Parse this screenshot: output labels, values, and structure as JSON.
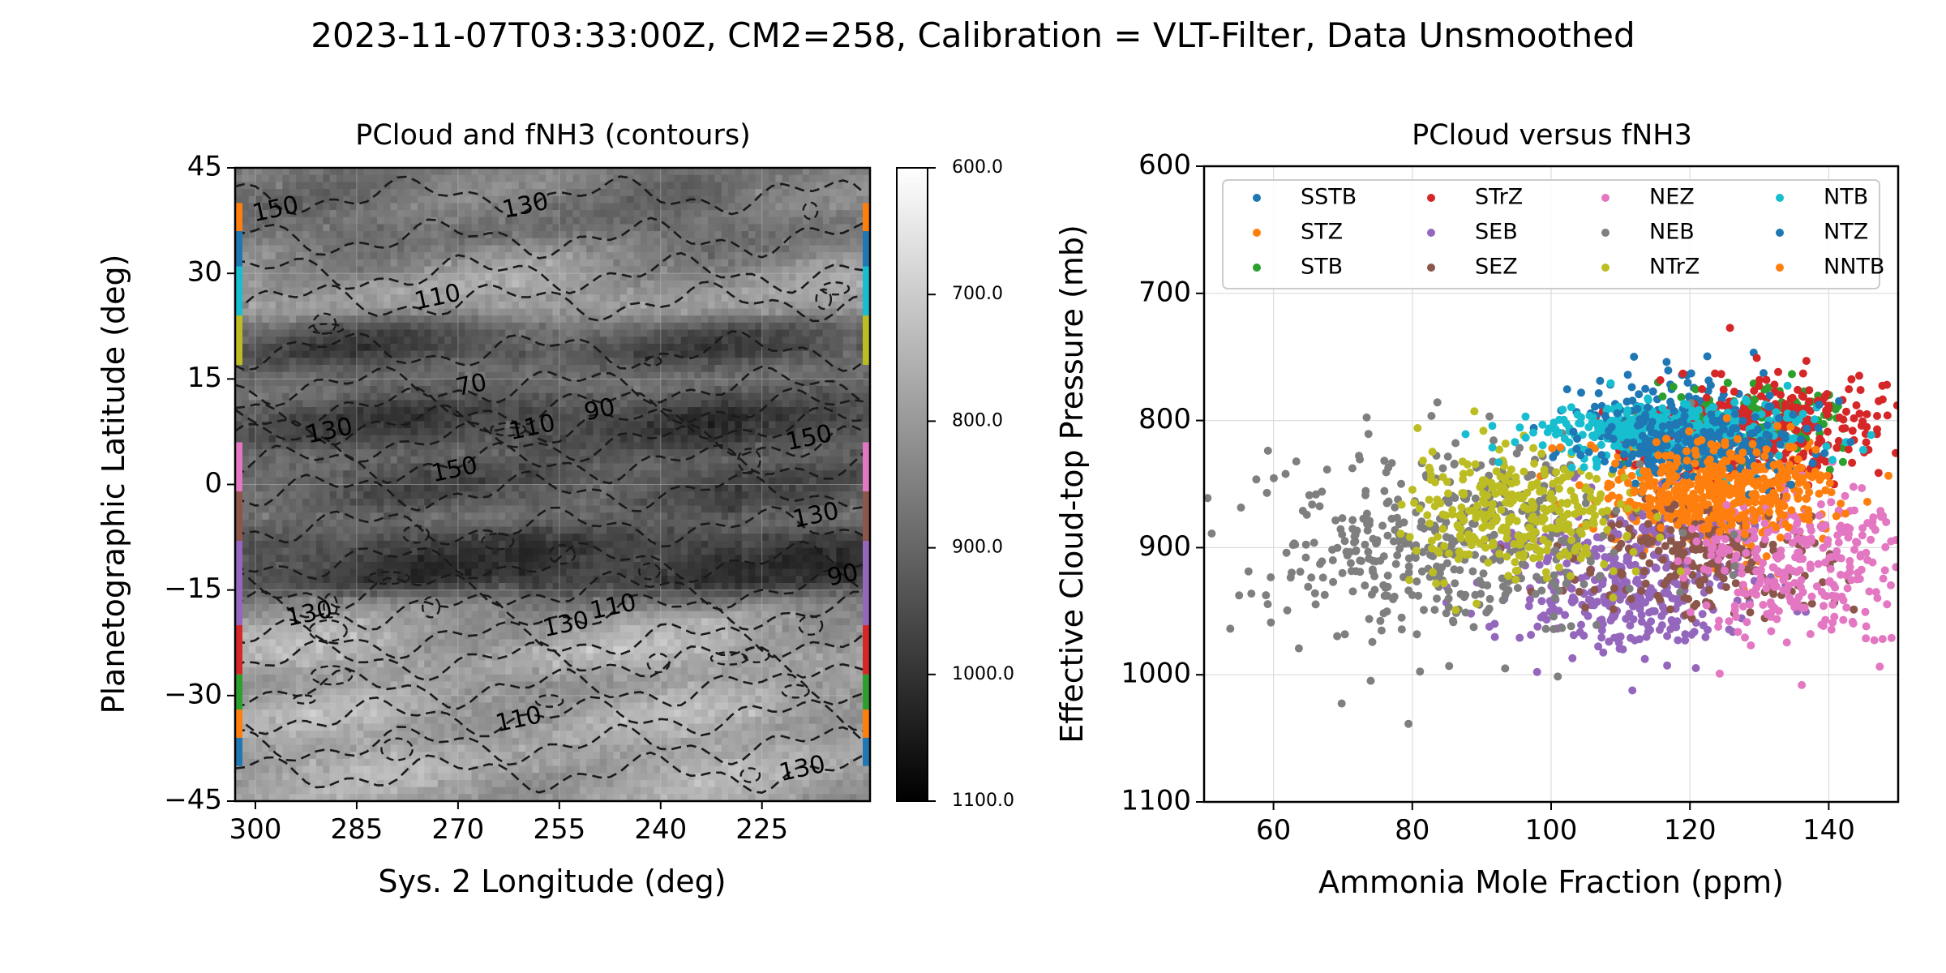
{
  "figure": {
    "suptitle": "2023-11-07T03:33:00Z, CM2=258, Calibration = VLT-Filter, Data Unsmoothed"
  },
  "chart_data": [
    {
      "type": "heatmap",
      "title": "PCloud and fNH3 (contours)",
      "xlabel": "Sys. 2 Longitude (deg)",
      "ylabel": "Planetographic Latitude (deg)",
      "xlim": [
        303,
        209
      ],
      "ylim": [
        -45,
        45
      ],
      "xticks": [
        300,
        285,
        270,
        255,
        240,
        225
      ],
      "yticks": [
        45,
        30,
        15,
        0,
        -15,
        -30,
        -45
      ],
      "ytick_labels": [
        "45",
        "30",
        "15",
        "0",
        "−15",
        "−30",
        "−45"
      ],
      "colorbar": {
        "range": [
          600,
          1100
        ],
        "ticks": [
          600,
          700,
          800,
          900,
          1000,
          1100
        ],
        "tick_labels": [
          "600.0",
          "700.0",
          "800.0",
          "900.0",
          "1000.0",
          "1100.0"
        ],
        "reversed": true
      },
      "pcloud_profile": {
        "lat": [
          45,
          40,
          36,
          32,
          28,
          25,
          22,
          19,
          16,
          13,
          10,
          7,
          4,
          1,
          -2,
          -5,
          -8,
          -11,
          -14,
          -17,
          -20,
          -24,
          -28,
          -32,
          -36,
          -40,
          -45
        ],
        "pressure": [
          860,
          870,
          880,
          830,
          790,
          800,
          920,
          960,
          890,
          900,
          960,
          950,
          900,
          930,
          920,
          880,
          960,
          980,
          970,
          830,
          790,
          760,
          800,
          770,
          780,
          770,
          790
        ]
      },
      "contour_labels": [
        {
          "text": "150",
          "lon": 297,
          "lat": 39
        },
        {
          "text": "130",
          "lon": 260,
          "lat": 39.5
        },
        {
          "text": "110",
          "lon": 273,
          "lat": 26.5
        },
        {
          "text": "70",
          "lon": 268,
          "lat": 14
        },
        {
          "text": "90",
          "lon": 249,
          "lat": 10.5
        },
        {
          "text": "130",
          "lon": 289,
          "lat": 7.5
        },
        {
          "text": "110",
          "lon": 259,
          "lat": 8
        },
        {
          "text": "150",
          "lon": 270.5,
          "lat": 2
        },
        {
          "text": "150",
          "lon": 218,
          "lat": 6.5
        },
        {
          "text": "130",
          "lon": 217,
          "lat": -4.5
        },
        {
          "text": "90",
          "lon": 213,
          "lat": -13
        },
        {
          "text": "110",
          "lon": 247,
          "lat": -17.5
        },
        {
          "text": "130",
          "lon": 254,
          "lat": -20
        },
        {
          "text": "130",
          "lon": 292,
          "lat": -18.5
        },
        {
          "text": "110",
          "lon": 261,
          "lat": -33.5
        },
        {
          "text": "130",
          "lon": 219,
          "lat": -40.5
        }
      ],
      "zone_strips": [
        {
          "band": "NNTB",
          "lat": [
            36,
            40
          ],
          "color": "#ff7f0e"
        },
        {
          "band": "NTZ",
          "lat": [
            31,
            36
          ],
          "color": "#1f77b4"
        },
        {
          "band": "NTB",
          "lat": [
            24,
            31
          ],
          "color": "#17becf"
        },
        {
          "band": "NTrZ",
          "lat": [
            17,
            24
          ],
          "color": "#bcbd22"
        },
        {
          "band": "NEB",
          "lat": [
            6,
            17
          ],
          "color": "#ffffff"
        },
        {
          "band": "NEZ",
          "lat": [
            -1,
            6
          ],
          "color": "#e377c2"
        },
        {
          "band": "SEZ",
          "lat": [
            -8,
            -1
          ],
          "color": "#8c564b"
        },
        {
          "band": "SEB",
          "lat": [
            -20,
            -8
          ],
          "color": "#9467bd"
        },
        {
          "band": "STrZ",
          "lat": [
            -27,
            -20
          ],
          "color": "#d62728"
        },
        {
          "band": "STB",
          "lat": [
            -32,
            -27
          ],
          "color": "#2ca02c"
        },
        {
          "band": "STZ",
          "lat": [
            -36,
            -32
          ],
          "color": "#ff7f0e"
        },
        {
          "band": "SSTB",
          "lat": [
            -40,
            -36
          ],
          "color": "#1f77b4"
        }
      ]
    },
    {
      "type": "scatter",
      "title": "PCloud versus fNH3",
      "xlabel": "Ammonia Mole Fraction (ppm)",
      "ylabel": "Effective Cloud-top Pressure (mb)",
      "xlim": [
        50,
        150
      ],
      "ylim": [
        1100,
        600
      ],
      "xticks": [
        60,
        80,
        100,
        120,
        140
      ],
      "yticks": [
        600,
        700,
        800,
        900,
        1000,
        1100
      ],
      "grid": true,
      "legend": {
        "placement": "upper",
        "columns": 4
      },
      "series": [
        {
          "name": "SSTB",
          "color": "#1f77b4",
          "cx": 118,
          "sx": 7,
          "cy": 800,
          "sy": 18,
          "n": 150
        },
        {
          "name": "STZ",
          "color": "#ff7f0e",
          "cx": 122,
          "sx": 8,
          "cy": 860,
          "sy": 22,
          "n": 320
        },
        {
          "name": "STB",
          "color": "#2ca02c",
          "cx": 130,
          "sx": 6,
          "cy": 800,
          "sy": 15,
          "n": 160
        },
        {
          "name": "STrZ",
          "color": "#d62728",
          "cx": 132,
          "sx": 9,
          "cy": 805,
          "sy": 22,
          "n": 300
        },
        {
          "name": "SEB",
          "color": "#9467bd",
          "cx": 110,
          "sx": 9,
          "cy": 930,
          "sy": 28,
          "n": 380
        },
        {
          "name": "SEZ",
          "color": "#8c564b",
          "cx": 122,
          "sx": 10,
          "cy": 905,
          "sy": 25,
          "n": 220
        },
        {
          "name": "NEZ",
          "color": "#e377c2",
          "cx": 136,
          "sx": 8,
          "cy": 910,
          "sy": 35,
          "n": 300
        },
        {
          "name": "NEB",
          "color": "#7f7f7f",
          "cx": 85,
          "sx": 13,
          "cy": 895,
          "sy": 38,
          "n": 450
        },
        {
          "name": "NTrZ",
          "color": "#bcbd22",
          "cx": 96,
          "sx": 8,
          "cy": 870,
          "sy": 25,
          "n": 320
        },
        {
          "name": "NTB",
          "color": "#17becf",
          "cx": 117,
          "sx": 9,
          "cy": 810,
          "sy": 12,
          "n": 350
        },
        {
          "name": "NTZ",
          "color": "#1f77b4",
          "cx": 122,
          "sx": 8,
          "cy": 820,
          "sy": 14,
          "n": 260
        },
        {
          "name": "NNTB",
          "color": "#ff7f0e",
          "cx": 126,
          "sx": 8,
          "cy": 850,
          "sy": 18,
          "n": 280
        }
      ]
    }
  ]
}
